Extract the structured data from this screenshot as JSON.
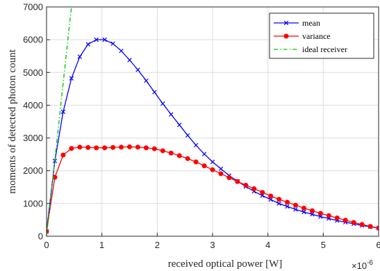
{
  "chart_data": {
    "type": "line",
    "title": "",
    "xlabel": "received optical power [W]",
    "ylabel": "moments of detected photon count",
    "x_exponent_base": "×10",
    "x_exponent_power": "-6",
    "xlim": [
      0,
      6
    ],
    "ylim": [
      0,
      7000
    ],
    "xticks": [
      0,
      1,
      2,
      3,
      4,
      5,
      6
    ],
    "yticks": [
      0,
      1000,
      2000,
      3000,
      4000,
      5000,
      6000,
      7000
    ],
    "grid": true,
    "legend_position": "top-right",
    "series": [
      {
        "name": "mean",
        "color": "#0000ff",
        "marker": "x",
        "x": [
          0,
          0.15,
          0.3,
          0.45,
          0.6,
          0.75,
          0.9,
          1.05,
          1.2,
          1.35,
          1.5,
          1.65,
          1.8,
          1.95,
          2.1,
          2.25,
          2.4,
          2.55,
          2.7,
          2.85,
          3.0,
          3.15,
          3.3,
          3.45,
          3.6,
          3.75,
          3.9,
          4.05,
          4.2,
          4.35,
          4.5,
          4.65,
          4.8,
          4.95,
          5.1,
          5.25,
          5.4,
          5.55,
          5.7,
          5.85,
          6.0
        ],
        "y": [
          150,
          2300,
          3800,
          4820,
          5480,
          5860,
          6000,
          6000,
          5880,
          5660,
          5380,
          5080,
          4750,
          4400,
          4050,
          3720,
          3400,
          3080,
          2780,
          2510,
          2270,
          2060,
          1850,
          1680,
          1520,
          1370,
          1240,
          1120,
          1000,
          910,
          820,
          740,
          670,
          600,
          540,
          480,
          430,
          380,
          330,
          290,
          250
        ]
      },
      {
        "name": "variance",
        "color": "#ff0000",
        "marker": "o",
        "x": [
          0,
          0.15,
          0.3,
          0.45,
          0.6,
          0.75,
          0.9,
          1.05,
          1.2,
          1.35,
          1.5,
          1.65,
          1.8,
          1.95,
          2.1,
          2.25,
          2.4,
          2.55,
          2.7,
          2.85,
          3.0,
          3.15,
          3.3,
          3.45,
          3.6,
          3.75,
          3.9,
          4.05,
          4.2,
          4.35,
          4.5,
          4.65,
          4.8,
          4.95,
          5.1,
          5.25,
          5.4,
          5.55,
          5.7,
          5.85,
          6.0
        ],
        "y": [
          150,
          1800,
          2480,
          2680,
          2720,
          2710,
          2700,
          2700,
          2710,
          2720,
          2730,
          2720,
          2700,
          2670,
          2610,
          2540,
          2460,
          2370,
          2270,
          2150,
          2030,
          1910,
          1790,
          1670,
          1560,
          1450,
          1340,
          1230,
          1130,
          1040,
          950,
          860,
          780,
          700,
          630,
          560,
          490,
          420,
          360,
          300,
          250
        ]
      },
      {
        "name": "ideal receiver",
        "color": "#00cc00",
        "marker": "none",
        "linestyle": "dash-dot",
        "x": [
          0,
          0.45
        ],
        "y": [
          0,
          7000
        ]
      }
    ]
  }
}
